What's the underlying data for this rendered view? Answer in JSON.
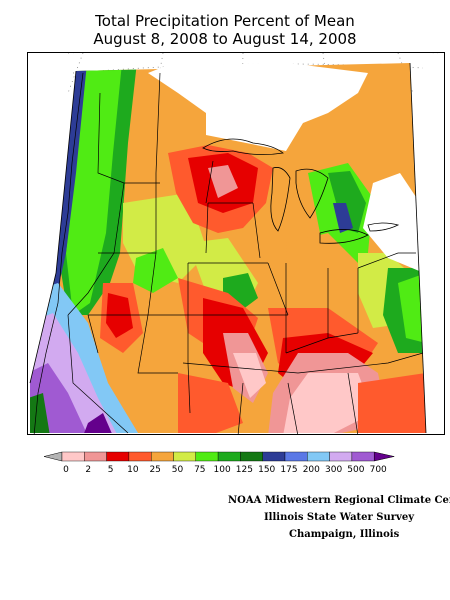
{
  "title": {
    "line1": "Total Precipitation Percent of Mean",
    "line2": "August 8, 2008 to August 14, 2008"
  },
  "legend": {
    "ticks": [
      "0",
      "2",
      "5",
      "10",
      "25",
      "50",
      "75",
      "100",
      "125",
      "150",
      "175",
      "200",
      "300",
      "500",
      "700"
    ],
    "colors": {
      "gray": "#b4b4b4",
      "pale_pink": "#ffc8c8",
      "pink": "#f09696",
      "red": "#e60000",
      "orange_red": "#ff5a2d",
      "orange": "#f5a53c",
      "yellow_green": "#d2eb46",
      "light_green": "#50eb14",
      "green": "#1eaa1e",
      "dark_green": "#147814",
      "navy": "#2d3c96",
      "blue": "#5a78e6",
      "sky_blue": "#82c8f5",
      "lavender": "#d2aaf0",
      "purple": "#a05ad2",
      "dark_purple": "#64008c"
    }
  },
  "credits": {
    "line1": "NOAA Midwestern Regional Climate Cent",
    "line2": "Illinois State Water Survey",
    "line3": "Champaign, Illinois"
  }
}
